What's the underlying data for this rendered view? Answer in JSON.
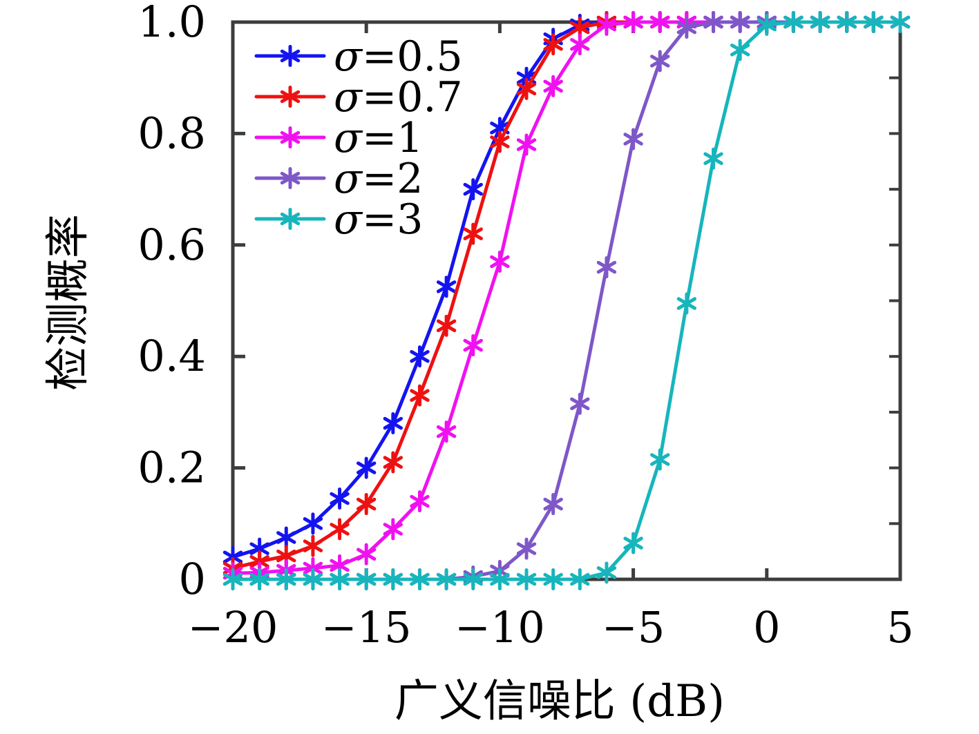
{
  "chart_data": {
    "type": "line",
    "title": "",
    "xlabel": "广义信噪比 (dB)",
    "ylabel": "检测概率",
    "xlim": [
      -20,
      5
    ],
    "ylim": [
      0,
      1
    ],
    "grid": false,
    "legend_position": "top-left-inside",
    "marker": "asterisk",
    "x_ticks": [
      -20,
      -15,
      -10,
      -5,
      0,
      5
    ],
    "x_tick_labels": [
      "−20",
      "−15",
      "−10",
      "−5",
      "0",
      "5"
    ],
    "y_ticks": [
      0,
      0.2,
      0.4,
      0.6,
      0.8,
      1.0
    ],
    "y_tick_labels": [
      "0",
      "0.2",
      "0.4",
      "0.6",
      "0.8",
      "1.0"
    ],
    "y_minor_ticks_right": [
      0.1,
      0.2,
      0.3,
      0.4,
      0.5,
      0.6,
      0.7,
      0.8,
      0.9
    ],
    "x": [
      -20,
      -19,
      -18,
      -17,
      -16,
      -15,
      -14,
      -13,
      -12,
      -11,
      -10,
      -9,
      -8,
      -7,
      -6,
      -5,
      -4,
      -3,
      -2,
      -1,
      0,
      1,
      2,
      3,
      4,
      5
    ],
    "series": [
      {
        "sigma_symbol": "σ",
        "value_text": "=0.5",
        "label": "σ=0.5",
        "color": "#1414f0",
        "values": [
          0.04,
          0.055,
          0.075,
          0.1,
          0.145,
          0.2,
          0.28,
          0.4,
          0.525,
          0.7,
          0.81,
          0.9,
          0.97,
          0.995,
          1,
          1,
          1,
          1,
          1,
          1,
          1,
          1,
          1,
          1,
          1,
          1
        ]
      },
      {
        "sigma_symbol": "σ",
        "value_text": "=0.7",
        "label": "σ=0.7",
        "color": "#ee1111",
        "values": [
          0.02,
          0.032,
          0.042,
          0.06,
          0.09,
          0.135,
          0.21,
          0.33,
          0.455,
          0.62,
          0.785,
          0.88,
          0.96,
          0.99,
          1,
          1,
          1,
          1,
          1,
          1,
          1,
          1,
          1,
          1,
          1,
          1
        ]
      },
      {
        "sigma_symbol": "σ",
        "value_text": "=1",
        "label": "σ=1",
        "color": "#f011f0",
        "values": [
          0.011,
          0.012,
          0.016,
          0.02,
          0.025,
          0.045,
          0.09,
          0.14,
          0.265,
          0.42,
          0.57,
          0.78,
          0.885,
          0.96,
          0.995,
          1,
          1,
          1,
          1,
          1,
          1,
          1,
          1,
          1,
          1,
          1
        ]
      },
      {
        "sigma_symbol": "σ",
        "value_text": "=2",
        "label": "σ=2",
        "color": "#7e57c8",
        "values": [
          0,
          0,
          0,
          0,
          0,
          0,
          0,
          0,
          0,
          0.005,
          0.015,
          0.055,
          0.135,
          0.315,
          0.56,
          0.79,
          0.93,
          0.99,
          1,
          1,
          1,
          1,
          1,
          1,
          1,
          1
        ]
      },
      {
        "sigma_symbol": "σ",
        "value_text": "=3",
        "label": "σ=3",
        "color": "#17b5bc",
        "values": [
          0,
          0,
          0,
          0,
          0,
          0,
          0,
          0,
          0,
          0,
          0,
          0,
          0,
          0,
          0.012,
          0.065,
          0.215,
          0.495,
          0.755,
          0.95,
          0.995,
          1,
          1,
          1,
          1,
          1
        ]
      }
    ]
  },
  "style": {
    "axis_color": "#3d3d3d",
    "background": "#ffffff",
    "text_color": "#000000"
  }
}
